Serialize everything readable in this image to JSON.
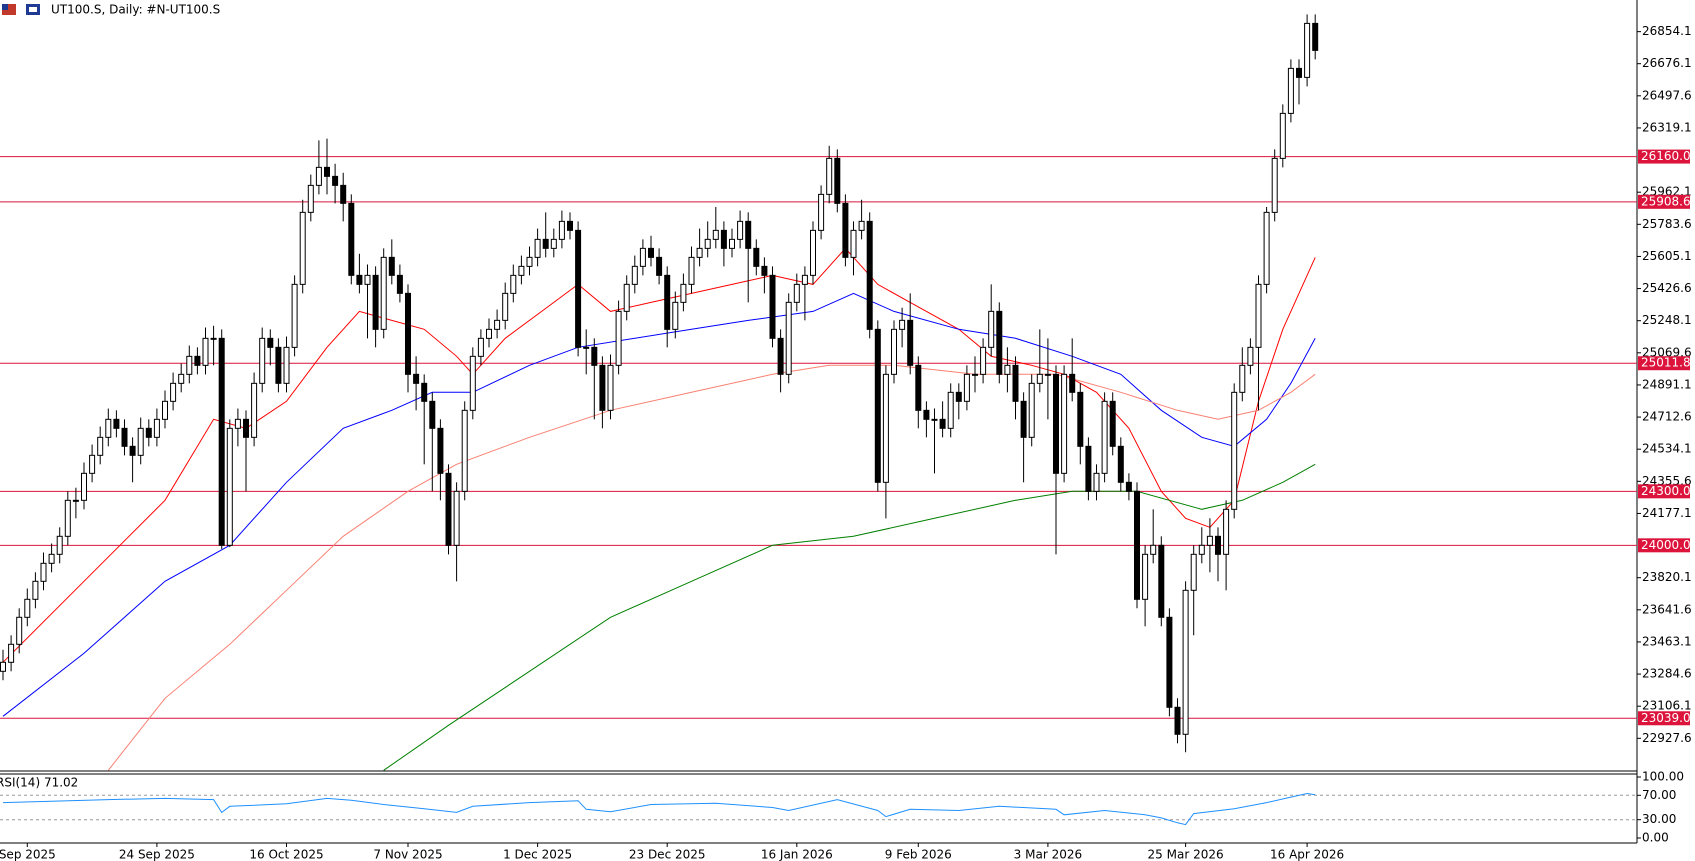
{
  "chart_data": {
    "type": "candlestick",
    "title": "UT100.S, Daily:  #N-UT100.S",
    "ylim": [
      22746,
      27030
    ],
    "yticks": [
      26854.1,
      26676.1,
      26497.6,
      26319.1,
      25962.1,
      25783.6,
      25605.1,
      25426.6,
      25248.1,
      25069.6,
      24891.1,
      24712.6,
      24534.1,
      24355.6,
      24177.1,
      23820.1,
      23641.6,
      23463.1,
      23284.6,
      23106.1,
      22927.6
    ],
    "levels": [
      {
        "value": 26160,
        "label": "26160.0"
      },
      {
        "value": 25908.6,
        "label": "25908.6"
      },
      {
        "value": 25011.8,
        "label": "25011.8"
      },
      {
        "value": 24300,
        "label": "24300.0"
      },
      {
        "value": 24000,
        "label": "24000.0"
      },
      {
        "value": 23039,
        "label": "23039.0"
      }
    ],
    "level_color": "#dc143c",
    "xticks": [
      {
        "value": 3,
        "label": "Sep 2025"
      },
      {
        "value": 19,
        "label": "24 Sep 2025"
      },
      {
        "value": 35,
        "label": "16 Oct 2025"
      },
      {
        "value": 50,
        "label": "7 Nov 2025"
      },
      {
        "value": 66,
        "label": "1 Dec 2025"
      },
      {
        "value": 82,
        "label": "23 Dec 2025"
      },
      {
        "value": 98,
        "label": "16 Jan 2026"
      },
      {
        "value": 113,
        "label": "9 Feb 2026"
      },
      {
        "value": 129,
        "label": "3 Mar 2026"
      },
      {
        "value": 146,
        "label": "25 Mar 2026"
      },
      {
        "value": 161,
        "label": "16 Apr 2026"
      }
    ],
    "up_color": "#ffffff",
    "down_color": "#000000",
    "candles": [
      [
        23300,
        23420,
        23250,
        23350
      ],
      [
        23350,
        23500,
        23300,
        23450
      ],
      [
        23450,
        23650,
        23400,
        23600
      ],
      [
        23600,
        23760,
        23550,
        23700
      ],
      [
        23700,
        23850,
        23650,
        23800
      ],
      [
        23800,
        23960,
        23750,
        23900
      ],
      [
        23900,
        24010,
        23850,
        23950
      ],
      [
        23950,
        24100,
        23900,
        24050
      ],
      [
        24050,
        24300,
        24000,
        24250
      ],
      [
        24250,
        24320,
        24150,
        24250
      ],
      [
        24250,
        24460,
        24200,
        24400
      ],
      [
        24400,
        24560,
        24350,
        24500
      ],
      [
        24500,
        24660,
        24450,
        24600
      ],
      [
        24600,
        24760,
        24550,
        24700
      ],
      [
        24700,
        24750,
        24600,
        24650
      ],
      [
        24650,
        24700,
        24500,
        24550
      ],
      [
        24550,
        24600,
        24350,
        24500
      ],
      [
        24500,
        24710,
        24450,
        24650
      ],
      [
        24650,
        24700,
        24550,
        24600
      ],
      [
        24600,
        24760,
        24550,
        24700
      ],
      [
        24700,
        24860,
        24650,
        24800
      ],
      [
        24800,
        24960,
        24750,
        24900
      ],
      [
        24900,
        25010,
        24850,
        24950
      ],
      [
        24950,
        25110,
        24900,
        25050
      ],
      [
        25050,
        25100,
        24950,
        25000
      ],
      [
        25000,
        25210,
        24950,
        25150
      ],
      [
        25150,
        25220,
        25000,
        25150
      ],
      [
        25150,
        25200,
        23980,
        24000
      ],
      [
        24000,
        24700,
        23990,
        24650
      ],
      [
        24650,
        24760,
        24550,
        24700
      ],
      [
        24700,
        24750,
        24300,
        24600
      ],
      [
        24600,
        24960,
        24550,
        24900
      ],
      [
        24900,
        25210,
        24850,
        25150
      ],
      [
        25150,
        25200,
        25000,
        25100
      ],
      [
        25100,
        25150,
        24850,
        24900
      ],
      [
        24900,
        25160,
        24850,
        25100
      ],
      [
        25100,
        25500,
        25050,
        25450
      ],
      [
        25450,
        25920,
        25400,
        25850
      ],
      [
        25850,
        26060,
        25800,
        26000
      ],
      [
        26000,
        26250,
        25950,
        26100
      ],
      [
        26100,
        26260,
        25950,
        26050
      ],
      [
        26050,
        26120,
        25900,
        26000
      ],
      [
        26000,
        26070,
        25800,
        25900
      ],
      [
        25900,
        25950,
        25450,
        25500
      ],
      [
        25500,
        25620,
        25400,
        25450
      ],
      [
        25450,
        25560,
        25150,
        25500
      ],
      [
        25500,
        25550,
        25100,
        25200
      ],
      [
        25200,
        25650,
        25150,
        25600
      ],
      [
        25600,
        25700,
        25450,
        25500
      ],
      [
        25500,
        25560,
        25350,
        25400
      ],
      [
        25400,
        25450,
        24850,
        24950
      ],
      [
        24950,
        25050,
        24750,
        24900
      ],
      [
        24900,
        24950,
        24450,
        24800
      ],
      [
        24800,
        24850,
        24300,
        24650
      ],
      [
        24650,
        24700,
        24250,
        24400
      ],
      [
        24400,
        24450,
        23950,
        24000
      ],
      [
        24000,
        24350,
        23800,
        24300
      ],
      [
        24300,
        24800,
        24250,
        24750
      ],
      [
        24750,
        25100,
        24700,
        25050
      ],
      [
        25050,
        25200,
        25000,
        25150
      ],
      [
        25150,
        25260,
        25100,
        25200
      ],
      [
        25200,
        25310,
        25150,
        25250
      ],
      [
        25250,
        25460,
        25200,
        25400
      ],
      [
        25400,
        25560,
        25350,
        25500
      ],
      [
        25500,
        25610,
        25450,
        25550
      ],
      [
        25550,
        25660,
        25500,
        25600
      ],
      [
        25600,
        25760,
        25550,
        25700
      ],
      [
        25700,
        25850,
        25600,
        25650
      ],
      [
        25650,
        25760,
        25600,
        25700
      ],
      [
        25700,
        25860,
        25650,
        25800
      ],
      [
        25800,
        25850,
        25700,
        25750
      ],
      [
        25750,
        25800,
        25050,
        25100
      ],
      [
        25100,
        25200,
        24950,
        25100
      ],
      [
        25100,
        25150,
        24700,
        25000
      ],
      [
        25000,
        25050,
        24650,
        24750
      ],
      [
        24750,
        25060,
        24700,
        25000
      ],
      [
        25000,
        25360,
        24950,
        25300
      ],
      [
        25300,
        25500,
        25250,
        25450
      ],
      [
        25450,
        25610,
        25400,
        25550
      ],
      [
        25550,
        25700,
        25500,
        25650
      ],
      [
        25650,
        25720,
        25550,
        25600
      ],
      [
        25600,
        25650,
        25450,
        25500
      ],
      [
        25500,
        25550,
        25100,
        25200
      ],
      [
        25200,
        25410,
        25150,
        25350
      ],
      [
        25350,
        25510,
        25300,
        25450
      ],
      [
        25450,
        25660,
        25400,
        25600
      ],
      [
        25600,
        25760,
        25550,
        25650
      ],
      [
        25650,
        25800,
        25600,
        25700
      ],
      [
        25700,
        25880,
        25650,
        25750
      ],
      [
        25750,
        25800,
        25550,
        25650
      ],
      [
        25650,
        25760,
        25600,
        25700
      ],
      [
        25700,
        25860,
        25650,
        25800
      ],
      [
        25800,
        25850,
        25350,
        25650
      ],
      [
        25650,
        25700,
        25500,
        25550
      ],
      [
        25550,
        25600,
        25400,
        25500
      ],
      [
        25500,
        25550,
        25100,
        25150
      ],
      [
        25150,
        25200,
        24850,
        24950
      ],
      [
        24950,
        25400,
        24900,
        25350
      ],
      [
        25350,
        25510,
        25300,
        25450
      ],
      [
        25450,
        25550,
        25250,
        25500
      ],
      [
        25500,
        25800,
        25450,
        25750
      ],
      [
        25750,
        26000,
        25700,
        25950
      ],
      [
        25950,
        26220,
        25900,
        26150
      ],
      [
        26150,
        26200,
        25850,
        25900
      ],
      [
        25900,
        25950,
        25550,
        25600
      ],
      [
        25600,
        25800,
        25500,
        25750
      ],
      [
        25750,
        25920,
        25700,
        25800
      ],
      [
        25800,
        25850,
        25150,
        25200
      ],
      [
        25200,
        25250,
        24300,
        24350
      ],
      [
        24350,
        25000,
        24150,
        24950
      ],
      [
        24950,
        25250,
        24900,
        25200
      ],
      [
        25200,
        25320,
        25100,
        25250
      ],
      [
        25250,
        25400,
        24950,
        25000
      ],
      [
        25000,
        25050,
        24650,
        24750
      ],
      [
        24750,
        24800,
        24600,
        24700
      ],
      [
        24700,
        24760,
        24400,
        24700
      ],
      [
        24700,
        24800,
        24600,
        24650
      ],
      [
        24650,
        24900,
        24600,
        24850
      ],
      [
        24850,
        24900,
        24700,
        24800
      ],
      [
        24800,
        25000,
        24750,
        24950
      ],
      [
        24950,
        25050,
        24850,
        24950
      ],
      [
        24950,
        25150,
        24900,
        25100
      ],
      [
        25100,
        25450,
        25050,
        25300
      ],
      [
        25300,
        25350,
        24900,
        24950
      ],
      [
        24950,
        25100,
        24850,
        25000
      ],
      [
        25000,
        25050,
        24700,
        24800
      ],
      [
        24800,
        24850,
        24350,
        24600
      ],
      [
        24600,
        24950,
        24550,
        24900
      ],
      [
        24900,
        25200,
        24850,
        24950
      ],
      [
        24950,
        25150,
        24700,
        24950
      ],
      [
        24950,
        25000,
        23950,
        24400
      ],
      [
        24400,
        25000,
        24350,
        24950
      ],
      [
        24950,
        25150,
        24800,
        24850
      ],
      [
        24850,
        24900,
        24450,
        24550
      ],
      [
        24550,
        24600,
        24250,
        24300
      ],
      [
        24300,
        24450,
        24250,
        24400
      ],
      [
        24400,
        24850,
        24350,
        24800
      ],
      [
        24800,
        24850,
        24500,
        24550
      ],
      [
        24550,
        24600,
        24300,
        24350
      ],
      [
        24350,
        24400,
        24250,
        24300
      ],
      [
        24300,
        24350,
        23650,
        23700
      ],
      [
        23700,
        24000,
        23550,
        23950
      ],
      [
        23950,
        24200,
        23900,
        24000
      ],
      [
        24000,
        24050,
        23550,
        23600
      ],
      [
        23600,
        23650,
        23050,
        23100
      ],
      [
        23100,
        23150,
        22900,
        22950
      ],
      [
        22950,
        23800,
        22850,
        23750
      ],
      [
        23750,
        24000,
        23500,
        23950
      ],
      [
        23950,
        24100,
        23900,
        24000
      ],
      [
        24000,
        24150,
        23850,
        24050
      ],
      [
        24050,
        24100,
        23800,
        23950
      ],
      [
        23950,
        24250,
        23750,
        24200
      ],
      [
        24200,
        24900,
        24150,
        24850
      ],
      [
        24850,
        25100,
        24800,
        25000
      ],
      [
        25000,
        25150,
        24950,
        25100
      ],
      [
        25100,
        25500,
        24750,
        25450
      ],
      [
        25450,
        25880,
        25400,
        25850
      ],
      [
        25850,
        26200,
        25800,
        26150
      ],
      [
        26150,
        26450,
        26100,
        26400
      ],
      [
        26400,
        26700,
        26350,
        26650
      ],
      [
        26650,
        26700,
        26450,
        26600
      ],
      [
        26600,
        26950,
        26550,
        26900
      ],
      [
        26900,
        26950,
        26700,
        26750
      ]
    ],
    "ma_lines": [
      {
        "color": "#ff0000",
        "x": [
          0,
          10,
          20,
          26,
          30,
          35,
          40,
          44,
          48,
          52,
          56,
          58,
          62,
          68,
          71,
          75,
          80,
          85,
          90,
          95,
          100,
          104,
          108,
          112,
          118,
          122,
          127,
          131,
          135,
          139,
          143,
          146,
          149,
          152,
          155,
          158,
          162
        ],
        "values": [
          23350,
          23800,
          24250,
          24700,
          24650,
          24800,
          25100,
          25300,
          25250,
          25200,
          25050,
          24950,
          25150,
          25350,
          25450,
          25300,
          25350,
          25400,
          25450,
          25500,
          25450,
          25650,
          25450,
          25350,
          25200,
          25050,
          25000,
          24950,
          24850,
          24650,
          24300,
          24150,
          24100,
          24250,
          24800,
          25200,
          25600
        ]
      },
      {
        "color": "#0000ff",
        "x": [
          0,
          10,
          20,
          28,
          35,
          42,
          48,
          53,
          58,
          65,
          71,
          78,
          85,
          92,
          100,
          105,
          110,
          118,
          125,
          132,
          138,
          143,
          148,
          152,
          156,
          159,
          162
        ],
        "values": [
          23050,
          23400,
          23800,
          24000,
          24350,
          24650,
          24750,
          24850,
          24850,
          25000,
          25100,
          25150,
          25200,
          25250,
          25300,
          25400,
          25300,
          25200,
          25150,
          25050,
          24950,
          24750,
          24600,
          24550,
          24700,
          24900,
          25150
        ]
      },
      {
        "color": "#fa8072",
        "x": [
          13,
          20,
          28,
          35,
          42,
          50,
          56,
          65,
          75,
          85,
          95,
          102,
          110,
          120,
          130,
          138,
          145,
          150,
          155,
          159,
          162
        ],
        "values": [
          22750,
          23150,
          23450,
          23750,
          24050,
          24300,
          24450,
          24600,
          24750,
          24850,
          24950,
          25000,
          25000,
          24950,
          24950,
          24850,
          24750,
          24700,
          24750,
          24850,
          24950
        ]
      },
      {
        "color": "#008000",
        "x": [
          47,
          55,
          65,
          75,
          85,
          95,
          105,
          115,
          125,
          132,
          140,
          148,
          153,
          158,
          162
        ],
        "values": [
          22750,
          23000,
          23300,
          23600,
          23800,
          24000,
          24050,
          24150,
          24250,
          24300,
          24300,
          24200,
          24250,
          24350,
          24450
        ]
      }
    ],
    "rsi": {
      "title": "RSI(14) 71.02",
      "color": "#1e90ff",
      "ylim": [
        0,
        100
      ],
      "yticks": [
        {
          "value": 100,
          "label": "100.00"
        },
        {
          "value": 70,
          "label": "70.00"
        },
        {
          "value": 30,
          "label": "30.00"
        },
        {
          "value": 0,
          "label": "0.00"
        }
      ],
      "x": [
        0,
        13,
        20,
        26,
        27,
        28,
        35,
        40,
        43,
        47,
        52,
        56,
        58,
        65,
        71,
        72,
        75,
        80,
        88,
        95,
        97,
        103,
        108,
        109,
        112,
        118,
        123,
        130,
        131,
        136,
        141,
        143,
        145,
        146,
        147,
        152,
        156,
        159,
        161,
        162
      ],
      "values": [
        58,
        63,
        65,
        63,
        42,
        52,
        56,
        65,
        62,
        55,
        48,
        42,
        52,
        58,
        61,
        47,
        43,
        55,
        57,
        50,
        45,
        63,
        45,
        35,
        47,
        45,
        52,
        47,
        38,
        45,
        38,
        33,
        25,
        22,
        40,
        48,
        58,
        67,
        73,
        71
      ]
    }
  }
}
